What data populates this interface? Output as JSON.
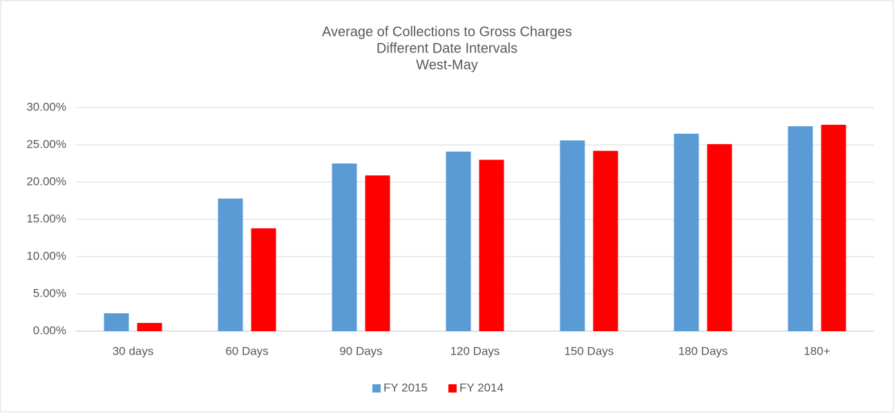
{
  "chart_data": {
    "type": "bar",
    "title": [
      "Average  of Collections to Gross Charges",
      "Different Date Intervals",
      "West-May"
    ],
    "categories": [
      "30 days",
      "60 Days",
      "90 Days",
      "120 Days",
      "150 Days",
      "180 Days",
      "180+"
    ],
    "series": [
      {
        "name": "FY 2015",
        "color": "#5b9bd5",
        "values": [
          2.4,
          17.8,
          22.5,
          24.1,
          25.6,
          26.5,
          27.5
        ]
      },
      {
        "name": "FY 2014",
        "color": "#ff0000",
        "values": [
          1.1,
          13.8,
          20.9,
          23.0,
          24.2,
          25.1,
          27.7
        ]
      }
    ],
    "ylim": [
      0,
      30
    ],
    "yticks": [
      {
        "value": 0,
        "label": "0.00%"
      },
      {
        "value": 5,
        "label": "5.00%"
      },
      {
        "value": 10,
        "label": "10.00%"
      },
      {
        "value": 15,
        "label": "15.00%"
      },
      {
        "value": 20,
        "label": "20.00%"
      },
      {
        "value": 25,
        "label": "25.00%"
      },
      {
        "value": 30,
        "label": "30.00%"
      }
    ],
    "grid": true,
    "legend": "bottom"
  }
}
